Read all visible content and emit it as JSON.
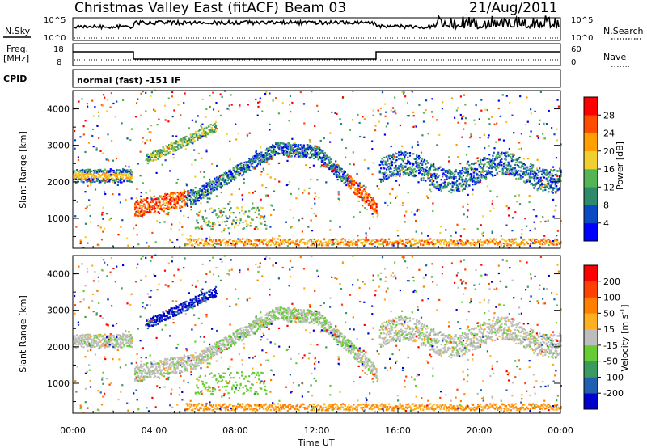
{
  "header": {
    "station": "Christmas Valley East (fitACF)",
    "beam": "Beam 03",
    "date": "21/Aug/2011"
  },
  "summary_panels": {
    "nsky_label": "N.Sky",
    "nsearch_label": "N.Search",
    "nsky_ticks": [
      "10^5",
      "10^0"
    ],
    "nsearch_ticks": [
      "10^5",
      "10^0"
    ],
    "freq_label_line1": "Freq.",
    "freq_label_line2": "[MHz]",
    "freq_ticks": [
      "18",
      "8"
    ],
    "nave_label": "Nave",
    "nave_ticks": [
      "60",
      "0"
    ],
    "cpid_label": "CPID",
    "cpid_value": "normal (fast) -151 IF"
  },
  "chart_data": [
    {
      "type": "heatmap",
      "name": "power",
      "ylabel": "Slant Range [km]",
      "xlabel": "Time UT",
      "xlim": [
        0,
        24
      ],
      "ylim": [
        180,
        4500
      ],
      "yticks": [
        "4000",
        "3000",
        "2000",
        "1000"
      ],
      "colorbar": {
        "label": "Power [dB]",
        "ticks": [
          "28",
          "24",
          "20",
          "16",
          "12",
          "8",
          "4"
        ],
        "colors": [
          "#0000ff",
          "#0a4bc4",
          "#2d8a6a",
          "#55b555",
          "#f0d030",
          "#ff9f00",
          "#ff4d00",
          "#ff0000"
        ]
      }
    },
    {
      "type": "heatmap",
      "name": "velocity",
      "ylabel": "Slant Range [km]",
      "xlabel": "Time UT",
      "xlim": [
        0,
        24
      ],
      "ylim": [
        180,
        4500
      ],
      "yticks": [
        "4000",
        "3000",
        "2000",
        "1000"
      ],
      "xticks": [
        "00:00",
        "04:00",
        "08:00",
        "12:00",
        "16:00",
        "20:00",
        "00:00"
      ],
      "colorbar": {
        "label_main": "Velocity [m s",
        "label_exp": "-1",
        "label_end": "]",
        "ticks": [
          "200",
          "100",
          "50",
          "15",
          "-15",
          "-50",
          "-100",
          "-200"
        ],
        "colors": [
          "#0000cc",
          "#1f5fb0",
          "#3a9a60",
          "#66cc33",
          "#bdbdbd",
          "#ffb020",
          "#ff8000",
          "#ff4000",
          "#ff0000"
        ]
      }
    }
  ]
}
